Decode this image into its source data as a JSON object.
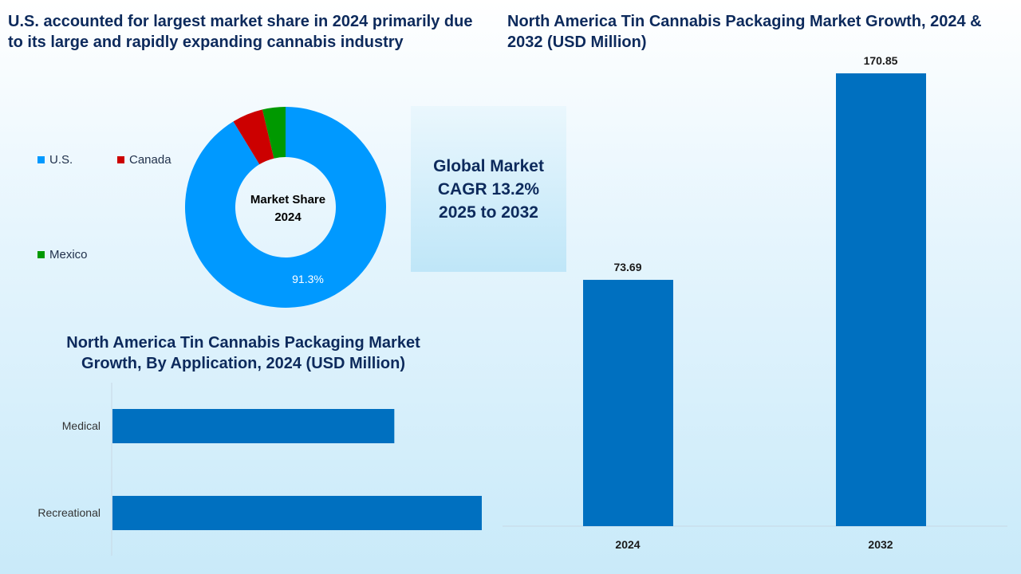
{
  "chart_data": [
    {
      "type": "pie",
      "title": "U.S. accounted for largest market share in 2024 primarily due to its large and rapidly expanding cannabis industry",
      "center_label": [
        "Market Share",
        "2024"
      ],
      "slices": [
        {
          "name": "U.S.",
          "value": 91.3,
          "color": "#0099ff",
          "label": "91.3%"
        },
        {
          "name": "Canada",
          "value": 5.0,
          "color": "#cc0000"
        },
        {
          "name": "Mexico",
          "value": 3.7,
          "color": "#009900"
        }
      ],
      "legend": "left"
    },
    {
      "type": "bar",
      "orientation": "horizontal",
      "title": "North America Tin Cannabis Packaging Market Growth, By Application, 2024 (USD Million)",
      "categories": [
        "Medical",
        "Recreational"
      ],
      "values": [
        31.9,
        41.8
      ],
      "color": "#0070c0",
      "xlim": [
        0,
        45
      ]
    },
    {
      "type": "bar",
      "title": "North America Tin Cannabis Packaging Market Growth, 2024 & 2032 (USD Million)",
      "categories": [
        "2024",
        "2032"
      ],
      "values": [
        73.69,
        170.85
      ],
      "labels": [
        "73.69",
        "170.85"
      ],
      "color": "#0070c0",
      "ylim": [
        -42.2,
        170.85
      ]
    }
  ],
  "cagr_box": {
    "line1": "Global Market",
    "line2": "CAGR 13.2%",
    "line3": "2025 to 2032"
  }
}
